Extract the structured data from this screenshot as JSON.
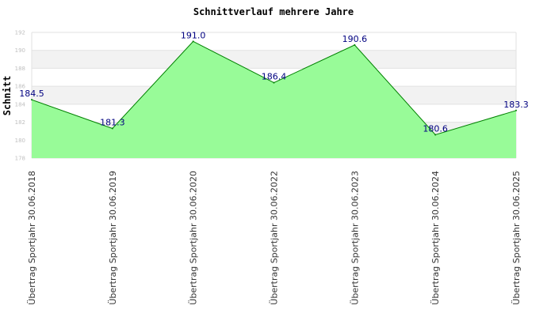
{
  "chart_data": {
    "type": "area",
    "title": "Schnittverlauf mehrere Jahre",
    "xlabel": "",
    "ylabel": "Schnitt",
    "ylim": [
      178,
      192
    ],
    "yticks": [
      "178",
      "180",
      "182",
      "184",
      "186",
      "188",
      "190",
      "192"
    ],
    "grid": true,
    "categories": [
      "Übertrag Sportjahr 30.06.2018",
      "Übertrag Sportjahr 30.06.2019",
      "Übertrag Sportjahr 30.06.2020",
      "Übertrag Sportjahr 30.06.2022",
      "Übertrag Sportjahr 30.06.2023",
      "Übertrag Sportjahr 30.06.2024",
      "Übertrag Sportjahr 30.06.2025"
    ],
    "values": [
      184.5,
      181.3,
      191.0,
      186.4,
      190.6,
      180.6,
      183.3
    ],
    "data_labels": [
      "184.5",
      "181.3",
      "191.0",
      "186.4",
      "190.6",
      "180.6",
      "183.3"
    ],
    "colors": {
      "fill": "#98fb98",
      "line": "#008000",
      "label": "#000080",
      "band": "#f2f2f2",
      "grid": "#e2e2e2"
    }
  }
}
